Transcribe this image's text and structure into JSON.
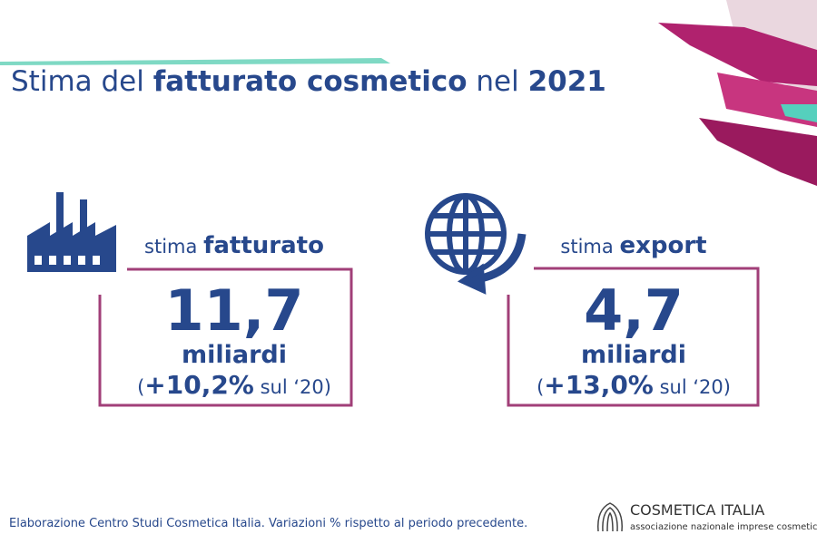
{
  "header": {
    "title": [
      "Stima del",
      "fatturato cosmetico",
      "nel",
      "2021"
    ]
  },
  "cards": [
    {
      "label": [
        "stima",
        "fatturato"
      ],
      "value": "11,7",
      "unit": "miliardi",
      "change": [
        "(",
        "+10,2%",
        "sul ‘20)"
      ]
    },
    {
      "label": [
        "stima",
        "export"
      ],
      "value": "4,7",
      "unit": "miliardi",
      "change": [
        "(",
        "+13,0%",
        "sul ‘20)"
      ]
    }
  ],
  "footer": {
    "note": "Elaborazione Centro Studi Cosmetica Italia. Variazioni % rispetto al periodo precedente.",
    "logo": "COSMETICA ITALIA",
    "tagline": "associazione nazionale imprese cosmetiche"
  }
}
